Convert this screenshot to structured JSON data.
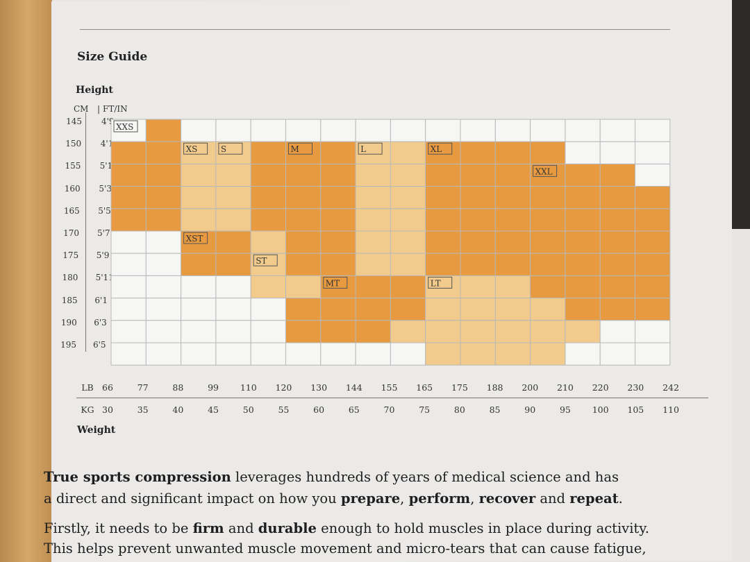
{
  "title": "Size Guide",
  "height_axis": {
    "label": "Height",
    "cm_header": "CM",
    "ftin_header": "FT/IN",
    "rows": [
      {
        "cm": "145",
        "ftin": "4'9"
      },
      {
        "cm": "150",
        "ftin": "4'11"
      },
      {
        "cm": "155",
        "ftin": "5'1"
      },
      {
        "cm": "160",
        "ftin": "5'3"
      },
      {
        "cm": "165",
        "ftin": "5'5"
      },
      {
        "cm": "170",
        "ftin": "5'7"
      },
      {
        "cm": "175",
        "ftin": "5'9"
      },
      {
        "cm": "180",
        "ftin": "5'11"
      },
      {
        "cm": "185",
        "ftin": "6'1"
      },
      {
        "cm": "190",
        "ftin": "6'3"
      },
      {
        "cm": "195",
        "ftin": "6'5"
      }
    ]
  },
  "weight_axis": {
    "label": "Weight",
    "lb_header": "LB",
    "kg_header": "KG",
    "lb": [
      "66",
      "77",
      "88",
      "99",
      "110",
      "120",
      "130",
      "144",
      "155",
      "165",
      "175",
      "188",
      "200",
      "210",
      "220",
      "230",
      "242"
    ],
    "kg": [
      "30",
      "35",
      "40",
      "45",
      "50",
      "55",
      "60",
      "65",
      "70",
      "75",
      "80",
      "85",
      "90",
      "95",
      "100",
      "105",
      "110"
    ]
  },
  "colors": {
    "dark": "#e79a3f",
    "light": "#f2cb8c",
    "empty": "#f6f6f5",
    "grid": "#b8b8b8",
    "outline": "#555555"
  },
  "chart_data": {
    "type": "table",
    "title": "Size Guide",
    "columns": [
      "30-35",
      "35-40",
      "40-45",
      "45-50",
      "50-55",
      "55-60",
      "60-65",
      "65-70",
      "70-75",
      "75-80",
      "80-85",
      "85-90",
      "90-95",
      "95-100",
      "100-105",
      "105-110"
    ],
    "rows": [
      "145",
      "150",
      "155",
      "160",
      "165",
      "170",
      "175",
      "180",
      "185",
      "190",
      "195"
    ],
    "cells": [
      "-X--------------",
      "XXSSMMMLLXXXX---",
      "XXSSMMMLLXXXXXX-",
      "XXSSMMMLLXXXXXXW",
      "XXSSMMMLLXXXXXXW",
      "--TTSMMLLXXXXXXW",
      "--TTVMMLLXXXXXXW",
      "----VVMMMYYYXXWW",
      "-----ZZZZYYYYXXX",
      "-----ZZZYYYYYY--",
      "---------YYYY---"
    ],
    "legend": {
      "X": "XXS/XL/XXL zones (dark)",
      "S": "XS/S (light)",
      "M": "M (dark)",
      "L": "L (light)",
      "T": "XST (dark)",
      "V": "ST (light)",
      "Z": "MT (dark)",
      "Y": "LT (light)",
      "W": "XXL (dark)"
    },
    "size_labels": [
      "XXS",
      "XS",
      "S",
      "M",
      "L",
      "XL",
      "XXL",
      "XST",
      "ST",
      "MT",
      "LT"
    ]
  },
  "text": {
    "p1_bold1": "True sports compression",
    "p1_a": " leverages hundreds of years of medical science and has",
    "p1_b": "a direct and significant impact on how you ",
    "p1_bold2": "prepare",
    "p1_c": ", ",
    "p1_bold3": "perform",
    "p1_d": ", ",
    "p1_bold4": "recover",
    "p1_e": " and ",
    "p1_bold5": "repeat",
    "p1_f": ".",
    "p2_a": "Firstly, it needs to be ",
    "p2_bold1": "firm",
    "p2_b": " and ",
    "p2_bold2": "durable",
    "p2_c": " enough to hold muscles in place during activity.",
    "p2_d": "This helps prevent unwanted muscle movement and micro-tears that can cause fatigue,"
  }
}
